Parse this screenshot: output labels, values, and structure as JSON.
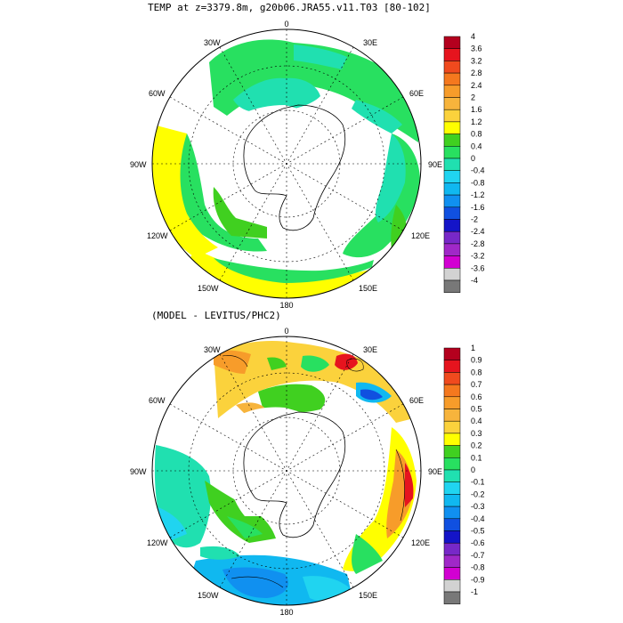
{
  "top_panel": {
    "title": "TEMP at z=3379.8m, g20b06.JRA55.v11.T03 [80-102]",
    "lon_labels": {
      "n": "0",
      "ne": "30E",
      "e1": "60E",
      "e": "90E",
      "se1": "120E",
      "se": "150E",
      "s": "180",
      "sw": "150W",
      "sw1": "120W",
      "w": "90W",
      "nw1": "60W",
      "nw": "30W"
    },
    "colorbar_labels": [
      "4",
      "3.6",
      "3.2",
      "2.8",
      "2.4",
      "2",
      "1.6",
      "1.2",
      "0.8",
      "0.4",
      "0",
      "-0.4",
      "-0.8",
      "-1.2",
      "-1.6",
      "-2",
      "-2.4",
      "-2.8",
      "-3.2",
      "-3.6",
      "-4"
    ],
    "colors": [
      "#b4001e",
      "#e6141e",
      "#f04a1e",
      "#f5781e",
      "#f79c2a",
      "#f7b43c",
      "#fbd23c",
      "#ffff00",
      "#40d020",
      "#28e060",
      "#20e0b0",
      "#20d4f0",
      "#10b8f0",
      "#1090f0",
      "#1050e0",
      "#1414c8",
      "#7828c8",
      "#a028c8",
      "#d200d2",
      "#d2d2d2",
      "#787878"
    ]
  },
  "bottom_panel": {
    "title": "(MODEL - LEVITUS/PHC2)",
    "lon_labels": {
      "n": "0",
      "ne": "30E",
      "e1": "60E",
      "e": "90E",
      "se1": "120E",
      "se": "150E",
      "s": "180",
      "sw": "150W",
      "sw1": "120W",
      "w": "90W",
      "nw1": "60W",
      "nw": "30W"
    },
    "colorbar_labels": [
      "1",
      "0.9",
      "0.8",
      "0.7",
      "0.6",
      "0.5",
      "0.4",
      "0.3",
      "0.2",
      "0.1",
      "0",
      "-0.1",
      "-0.2",
      "-0.3",
      "-0.4",
      "-0.5",
      "-0.6",
      "-0.7",
      "-0.8",
      "-0.9",
      "-1"
    ],
    "colors": [
      "#b4001e",
      "#e6141e",
      "#f04a1e",
      "#f5781e",
      "#f79c2a",
      "#f7b43c",
      "#fbd23c",
      "#ffff00",
      "#40d020",
      "#28e060",
      "#20e0b0",
      "#20d4f0",
      "#10b8f0",
      "#1090f0",
      "#1050e0",
      "#1414c8",
      "#7828c8",
      "#a028c8",
      "#d200d2",
      "#d2d2d2",
      "#787878"
    ]
  }
}
